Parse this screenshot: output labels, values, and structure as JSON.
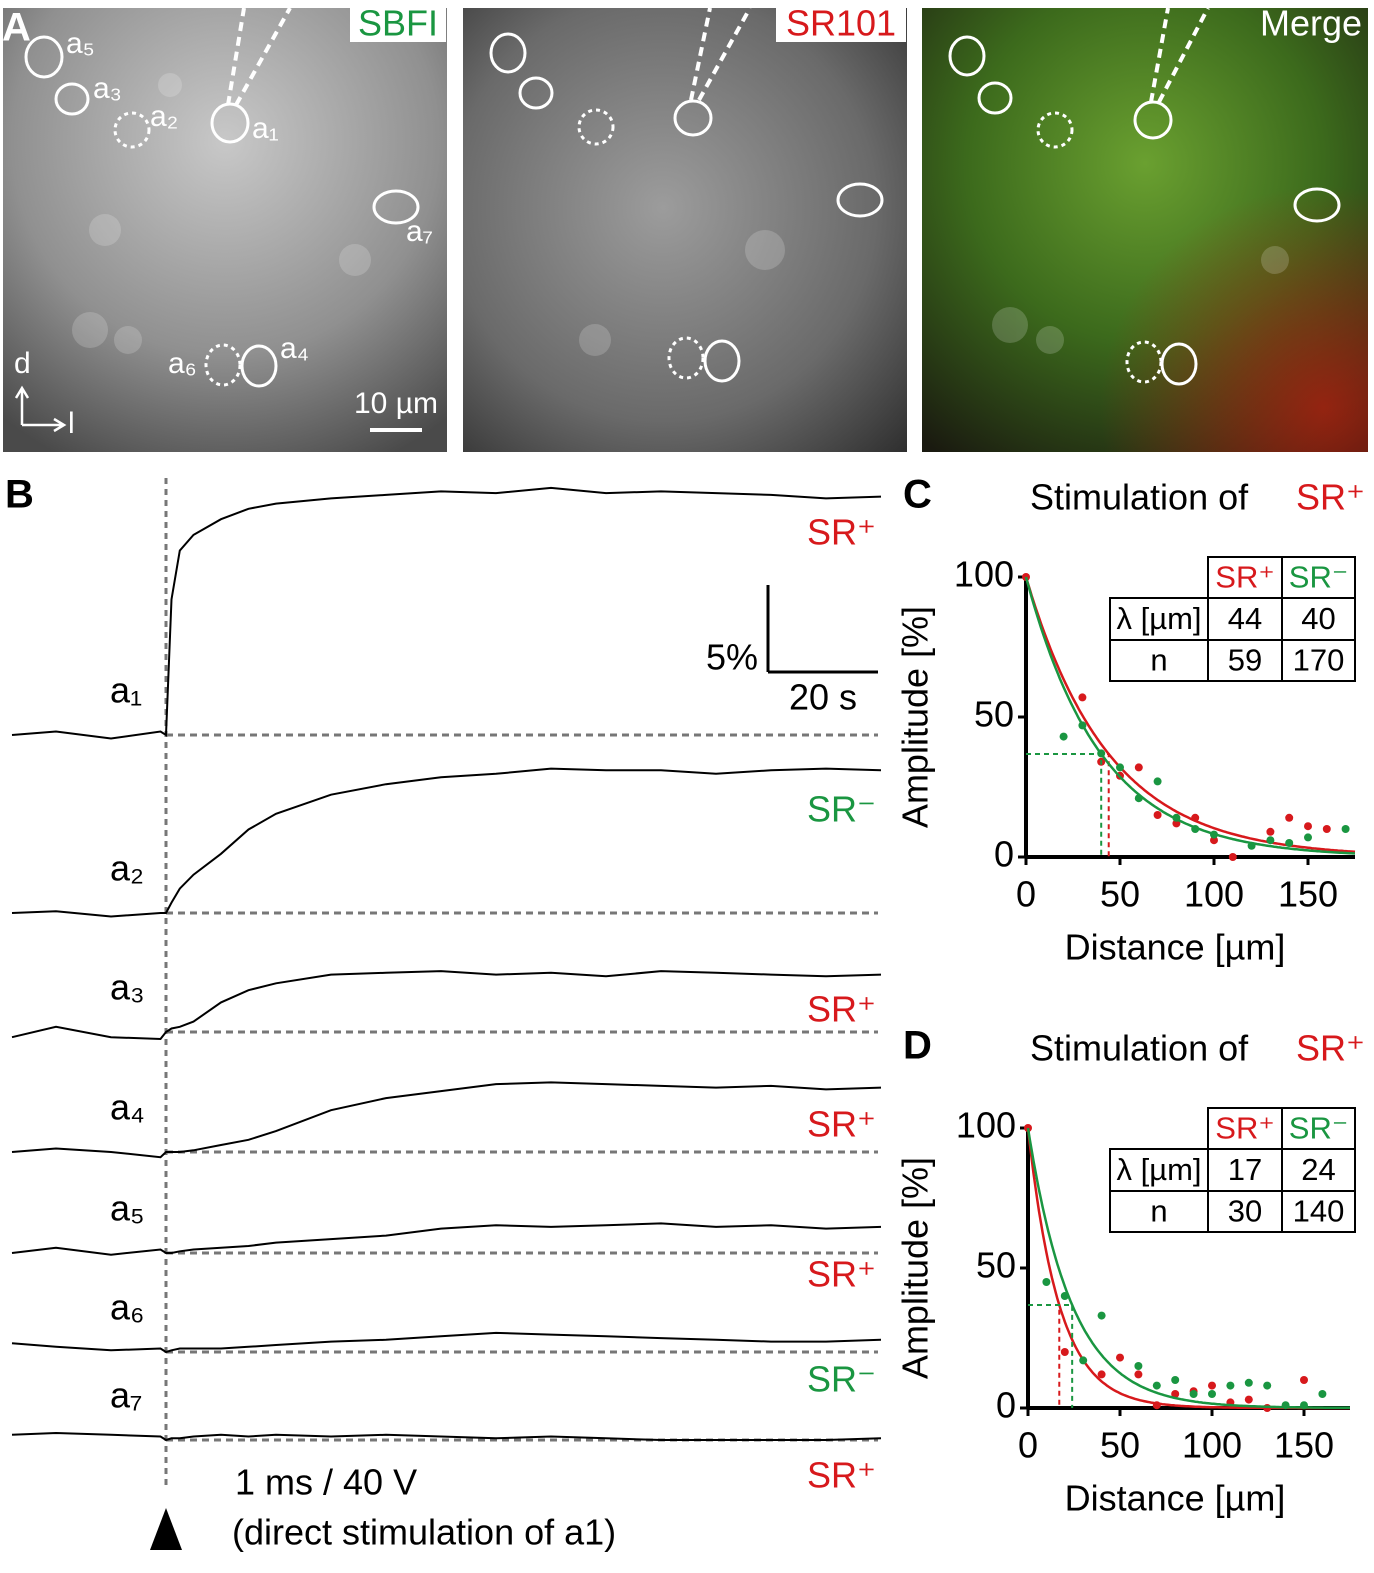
{
  "panel_a": {
    "label": "A",
    "image_titles": [
      "SBFI",
      "SR101",
      "Merge"
    ],
    "cell_labels": [
      "a₅",
      "a₃",
      "a₂",
      "a₁",
      "a₇",
      "a₆",
      "a₄"
    ],
    "axis_dorsal": "d",
    "axis_lateral": "l",
    "scale_bar": "10 µm"
  },
  "panel_b": {
    "label": "B",
    "t": [
      -28,
      -20,
      -10,
      -1,
      0,
      1,
      2.5,
      5,
      10,
      15,
      20,
      30,
      40,
      50,
      60,
      70,
      80,
      90,
      100,
      110,
      120,
      130
    ],
    "traces": [
      {
        "label": "a₁",
        "type": "SR⁺",
        "color": "#d7191c",
        "values": [
          0,
          0.2,
          -0.2,
          0.2,
          0,
          7.8,
          10.6,
          11.5,
          12.4,
          13,
          13.3,
          13.6,
          13.8,
          14,
          13.9,
          14.2,
          13.9,
          14,
          13.9,
          13.8,
          13.6,
          13.7
        ]
      },
      {
        "label": "a₂",
        "type": "SR⁻",
        "color": "#1a9641",
        "values": [
          0,
          0.1,
          -0.2,
          0,
          0,
          0.6,
          1.4,
          2.2,
          3.4,
          4.8,
          5.7,
          6.8,
          7.4,
          7.8,
          8.0,
          8.3,
          8.2,
          8.2,
          8.0,
          8.2,
          8.3,
          8.2
        ]
      },
      {
        "label": "a₃",
        "type": "SR⁺",
        "color": "#d7191c",
        "values": [
          -0.3,
          0.3,
          -0.3,
          -0.4,
          0,
          0.2,
          0.3,
          0.6,
          1.7,
          2.4,
          2.8,
          3.3,
          3.4,
          3.5,
          3.3,
          3.4,
          3.2,
          3.5,
          3.4,
          3.3,
          3.2,
          3.3
        ]
      },
      {
        "label": "a₄",
        "type": "SR⁺",
        "color": "#d7191c",
        "values": [
          0,
          0.2,
          0,
          -0.3,
          0,
          0,
          0,
          0.1,
          0.4,
          0.7,
          1.2,
          2.4,
          3.1,
          3.5,
          3.9,
          4.0,
          3.9,
          3.8,
          3.7,
          3.8,
          3.6,
          3.7
        ]
      },
      {
        "label": "a₅",
        "type": "SR⁺",
        "color": "#d7191c",
        "values": [
          0,
          0.3,
          -0.1,
          0.2,
          0,
          0,
          0.1,
          0.2,
          0.3,
          0.4,
          0.6,
          0.8,
          1.0,
          1.4,
          1.6,
          1.5,
          1.6,
          1.7,
          1.5,
          1.6,
          1.4,
          1.5
        ]
      },
      {
        "label": "a₆",
        "type": "SR⁻",
        "color": "#1a9641",
        "values": [
          0.5,
          0.3,
          0.1,
          0.2,
          0,
          0.1,
          0.2,
          0.2,
          0.2,
          0.3,
          0.4,
          0.6,
          0.7,
          0.9,
          1.1,
          1.0,
          0.9,
          0.8,
          0.7,
          0.6,
          0.6,
          0.7
        ]
      },
      {
        "label": "a₇",
        "type": "SR⁺",
        "color": "#d7191c",
        "values": [
          0.3,
          0.4,
          0.3,
          0.2,
          0,
          0.1,
          0.1,
          0.2,
          0.3,
          0.2,
          0.3,
          0.2,
          0.3,
          0.2,
          0.1,
          0.2,
          0.1,
          0,
          0,
          0,
          0,
          0.1
        ]
      }
    ],
    "scale_y": {
      "value": 5,
      "label": "5%"
    },
    "scale_x": {
      "value": 20,
      "label": "20 s"
    },
    "stimulus": "1 ms / 40 V",
    "stimulus_note": "(direct stimulation of a1)"
  },
  "chart_data": [
    {
      "type": "scatter",
      "panel_label": "C",
      "title": "Stimulation of",
      "xlabel": "Distance [µm]",
      "ylabel": "Amplitude [%]",
      "xlim": [
        0,
        175
      ],
      "ylim": [
        0,
        100
      ],
      "xticks": [
        0,
        50,
        100,
        150
      ],
      "yticks": [
        0,
        50,
        100
      ],
      "table_row_labels": [
        "λ [µm]",
        "n"
      ],
      "series": [
        {
          "name": "SR⁺",
          "color": "#d7191c",
          "lambda": 44,
          "n": 59,
          "x": [
            0,
            30,
            40,
            50,
            60,
            70,
            80,
            90,
            100,
            110,
            130,
            140,
            150,
            160
          ],
          "values": [
            100,
            57,
            34,
            29,
            32,
            15,
            12,
            14,
            6,
            0,
            9,
            14,
            11,
            10
          ]
        },
        {
          "name": "SR⁻",
          "color": "#1a9641",
          "lambda": 40,
          "n": 170,
          "x": [
            20,
            30,
            40,
            50,
            60,
            70,
            80,
            90,
            100,
            120,
            130,
            140,
            150,
            170
          ],
          "values": [
            43,
            47,
            37,
            32,
            21,
            27,
            14,
            10,
            8,
            4,
            6,
            5,
            7,
            10
          ]
        }
      ]
    },
    {
      "type": "scatter",
      "panel_label": "D",
      "title": "Stimulation of",
      "xlabel": "Distance [µm]",
      "ylabel": "Amplitude [%]",
      "xlim": [
        0,
        175
      ],
      "ylim": [
        0,
        100
      ],
      "xticks": [
        0,
        50,
        100,
        150
      ],
      "yticks": [
        0,
        50,
        100
      ],
      "table_row_labels": [
        "λ [µm]",
        "n"
      ],
      "series": [
        {
          "name": "SR⁺",
          "color": "#d7191c",
          "lambda": 17,
          "n": 30,
          "x": [
            0,
            20,
            40,
            50,
            60,
            70,
            80,
            90,
            100,
            110,
            120,
            130,
            150
          ],
          "values": [
            100,
            20,
            12,
            18,
            12,
            1,
            5,
            6,
            8,
            2,
            3,
            0,
            10
          ]
        },
        {
          "name": "SR⁻",
          "color": "#1a9641",
          "lambda": 24,
          "n": 140,
          "x": [
            10,
            20,
            30,
            40,
            60,
            70,
            80,
            90,
            100,
            110,
            120,
            130,
            140,
            150,
            160
          ],
          "values": [
            45,
            40,
            17,
            33,
            15,
            8,
            10,
            5,
            5,
            8,
            9,
            8,
            1,
            1,
            5
          ]
        }
      ]
    }
  ]
}
